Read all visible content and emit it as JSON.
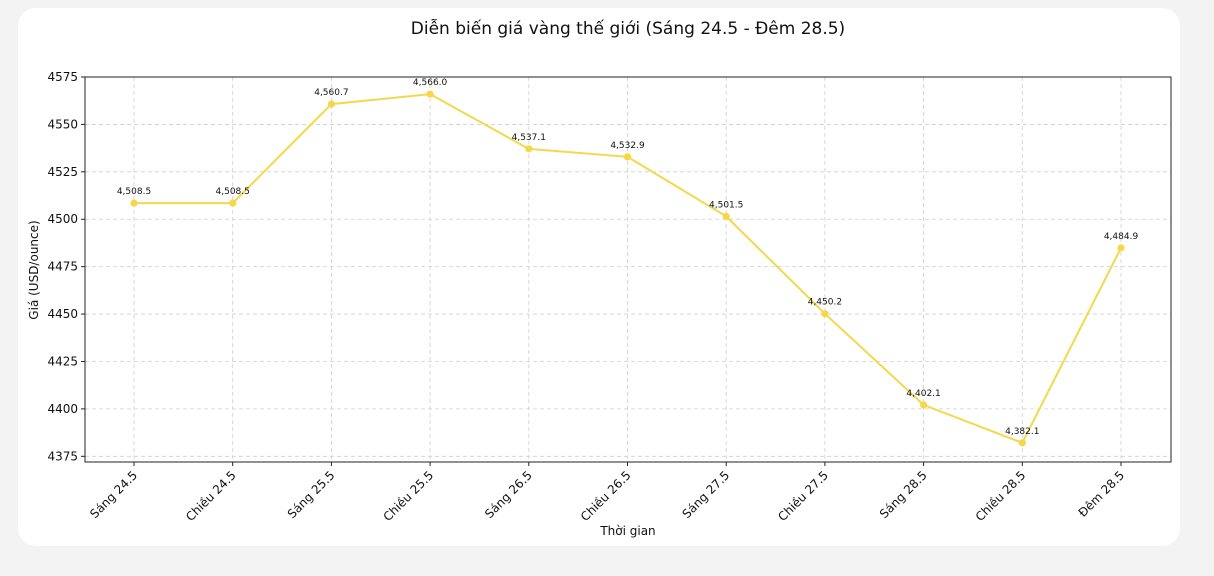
{
  "chart_data": {
    "type": "line",
    "title": "Diễn biến giá vàng thế giới (Sáng 24.5 - Đêm 28.5)",
    "xlabel": "Thời gian",
    "ylabel": "Giá (USD/ounce)",
    "categories": [
      "Sáng 24.5",
      "Chiều 24.5",
      "Sáng 25.5",
      "Chiều 25.5",
      "Sáng 26.5",
      "Chiều 26.5",
      "Sáng 27.5",
      "Chiều 27.5",
      "Sáng 28.5",
      "Chiều 28.5",
      "Đêm 28.5"
    ],
    "values": [
      4508.5,
      4508.5,
      4560.7,
      4566.0,
      4537.1,
      4532.9,
      4501.5,
      4450.2,
      4402.1,
      4382.1,
      4484.9
    ],
    "data_labels": [
      "4,508.5",
      "4,508.5",
      "4,560.7",
      "4,566.0",
      "4,537.1",
      "4,532.9",
      "4,501.5",
      "4,450.2",
      "4,402.1",
      "4,382.1",
      "4,484.9"
    ],
    "ylim": [
      4372,
      4575
    ],
    "yticks": [
      4375,
      4400,
      4425,
      4450,
      4475,
      4500,
      4525,
      4550,
      4575
    ],
    "grid": true,
    "color": "#f4d84a"
  }
}
